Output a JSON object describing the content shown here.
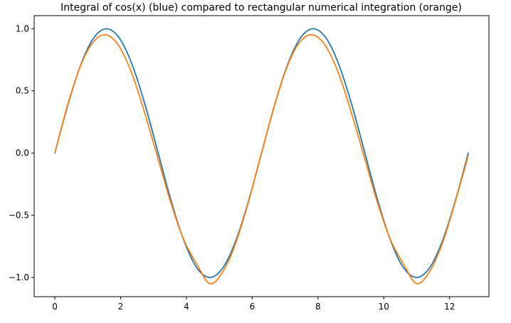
{
  "chart_data": {
    "type": "line",
    "title": "Integral of cos(x) (blue) compared to rectangular numerical integration (orange)",
    "xlabel": "",
    "ylabel": "",
    "xlim": [
      -0.628,
      13.195
    ],
    "ylim": [
      -1.155,
      1.105
    ],
    "x_ticks": [
      0,
      2,
      4,
      6,
      8,
      10,
      12
    ],
    "y_ticks": [
      -1.0,
      -0.5,
      0.0,
      0.5,
      1.0
    ],
    "x_tick_labels": [
      "0",
      "2",
      "4",
      "6",
      "8",
      "10",
      "12"
    ],
    "y_tick_labels": [
      "−1.0",
      "−0.5",
      "0.0",
      "0.5",
      "1.0"
    ],
    "grid": false,
    "series": [
      {
        "color": "#1f77b4",
        "x": [
          0.0,
          0.393,
          0.785,
          1.178,
          1.571,
          1.963,
          2.356,
          2.749,
          3.142,
          3.534,
          3.927,
          4.32,
          4.712,
          5.105,
          5.498,
          5.89,
          6.283,
          6.676,
          7.069,
          7.461,
          7.854,
          8.247,
          8.639,
          9.032,
          9.425,
          9.817,
          10.21,
          10.603,
          10.996,
          11.388,
          11.781,
          12.174,
          12.566
        ],
        "y": [
          0.0,
          0.383,
          0.707,
          0.924,
          1.0,
          0.924,
          0.707,
          0.383,
          0.0,
          -0.383,
          -0.707,
          -0.924,
          -1.0,
          -0.924,
          -0.707,
          -0.383,
          0.0,
          0.383,
          0.707,
          0.924,
          1.0,
          0.924,
          0.707,
          0.383,
          0.0,
          -0.383,
          -0.707,
          -0.924,
          -1.0,
          -0.924,
          -0.707,
          -0.383,
          0.0
        ]
      },
      {
        "color": "#ff7f0e",
        "x": [
          0.0,
          0.393,
          0.785,
          1.178,
          1.571,
          1.963,
          2.356,
          2.749,
          3.142,
          3.534,
          3.927,
          4.32,
          4.712,
          5.105,
          5.498,
          5.89,
          6.283,
          6.676,
          7.069,
          7.461,
          7.854,
          8.247,
          8.639,
          9.032,
          9.425,
          9.817,
          10.21,
          10.603,
          10.996,
          11.388,
          11.781,
          12.174,
          12.566
        ],
        "y": [
          0.0,
          0.39,
          0.703,
          0.897,
          0.95,
          0.855,
          0.63,
          0.308,
          -0.05,
          -0.406,
          -0.702,
          -0.895,
          -1.05,
          -0.955,
          -0.725,
          -0.39,
          0.0,
          0.38,
          0.7,
          0.897,
          0.95,
          0.855,
          0.63,
          0.308,
          -0.05,
          -0.406,
          -0.702,
          -0.895,
          -1.05,
          -0.955,
          -0.725,
          -0.39,
          -0.02
        ]
      }
    ]
  }
}
